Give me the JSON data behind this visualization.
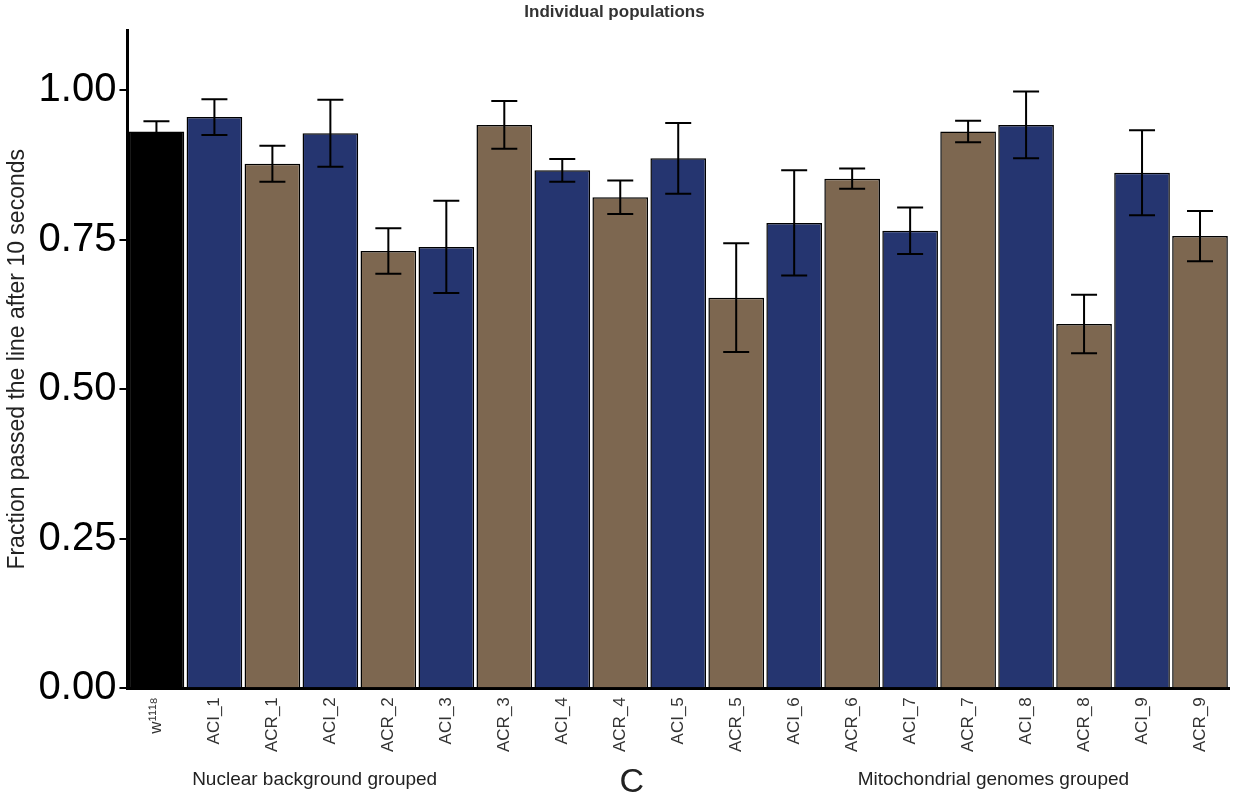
{
  "chart_data": {
    "type": "bar",
    "title": "Individual populations",
    "ylabel": "Fraction passed the line after 10 seconds",
    "categories": [
      "w¹¹¹⁸",
      "ACI_1",
      "ACR_1",
      "ACI_2",
      "ACR_2",
      "ACI_3",
      "ACR_3",
      "ACI_4",
      "ACR_4",
      "ACI_5",
      "ACR_5",
      "ACI_6",
      "ACR_6",
      "ACI_7",
      "ACR_7",
      "ACI_8",
      "ACR_8",
      "ACI_9",
      "ACR_9"
    ],
    "values": [
      0.931,
      0.955,
      0.877,
      0.928,
      0.731,
      0.738,
      0.942,
      0.866,
      0.821,
      0.886,
      0.653,
      0.778,
      0.852,
      0.765,
      0.931,
      0.942,
      0.609,
      0.862,
      0.756
    ],
    "errors": [
      0.017,
      0.03,
      0.03,
      0.056,
      0.038,
      0.077,
      0.04,
      0.019,
      0.028,
      0.059,
      0.091,
      0.088,
      0.017,
      0.039,
      0.018,
      0.056,
      0.049,
      0.071,
      0.042
    ],
    "colors": [
      "#000000",
      "#253570",
      "#7d6750",
      "#253570",
      "#7d6750",
      "#253570",
      "#7d6750",
      "#253570",
      "#7d6750",
      "#253570",
      "#7d6750",
      "#253570",
      "#7d6750",
      "#253570",
      "#7d6750",
      "#253570",
      "#7d6750",
      "#253570",
      "#7d6750"
    ],
    "ylim": [
      0,
      1.1
    ],
    "yticks": [
      {
        "value": 0,
        "label": "0.00"
      },
      {
        "value": 0.25,
        "label": "0.25"
      },
      {
        "value": 0.5,
        "label": "0.50"
      },
      {
        "value": 0.75,
        "label": "0.75"
      },
      {
        "value": 1,
        "label": "1.00"
      }
    ],
    "grid": false,
    "legend": false,
    "annotations": [
      "Nuclear background grouped",
      "C",
      "Mitochondrial genomes grouped"
    ]
  }
}
